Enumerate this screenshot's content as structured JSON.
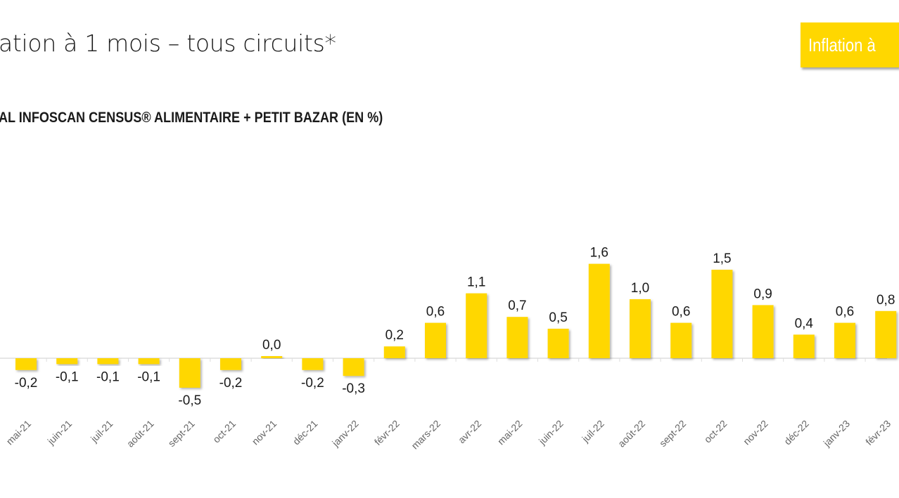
{
  "header": {
    "title": "ation à 1 mois – tous circuits*",
    "badge": "Inflation à"
  },
  "chart_data": {
    "type": "bar",
    "title": "ation à 1 mois – tous circuits*",
    "subtitle": "AL INFOSCAN CENSUS® ALIMENTAIRE + PETIT BAZAR (EN %)",
    "categories": [
      "mai-21",
      "juin-21",
      "juil-21",
      "août-21",
      "sept-21",
      "oct-21",
      "nov-21",
      "déc-21",
      "janv-22",
      "févr-22",
      "mars-22",
      "avr-22",
      "mai-22",
      "juin-22",
      "juil-22",
      "août-22",
      "sept-22",
      "oct-22",
      "nov-22",
      "déc-22",
      "janv-23",
      "févr-23"
    ],
    "values": [
      -0.2,
      -0.1,
      -0.1,
      -0.1,
      -0.5,
      -0.2,
      0.0,
      -0.2,
      -0.3,
      0.2,
      0.6,
      1.1,
      0.7,
      0.5,
      1.6,
      1.0,
      0.6,
      1.5,
      0.9,
      0.4,
      0.6,
      0.8
    ],
    "labels": [
      "-0,2",
      "-0,1",
      "-0,1",
      "-0,1",
      "-0,5",
      "-0,2",
      "0,0",
      "-0,2",
      "-0,3",
      "0,2",
      "0,6",
      "1,1",
      "0,7",
      "0,5",
      "1,6",
      "1,0",
      "0,6",
      "1,5",
      "0,9",
      "0,4",
      "0,6",
      "0,8"
    ],
    "xlabel": "",
    "ylabel": "",
    "grid": false,
    "bar_color": "#ffd700"
  }
}
